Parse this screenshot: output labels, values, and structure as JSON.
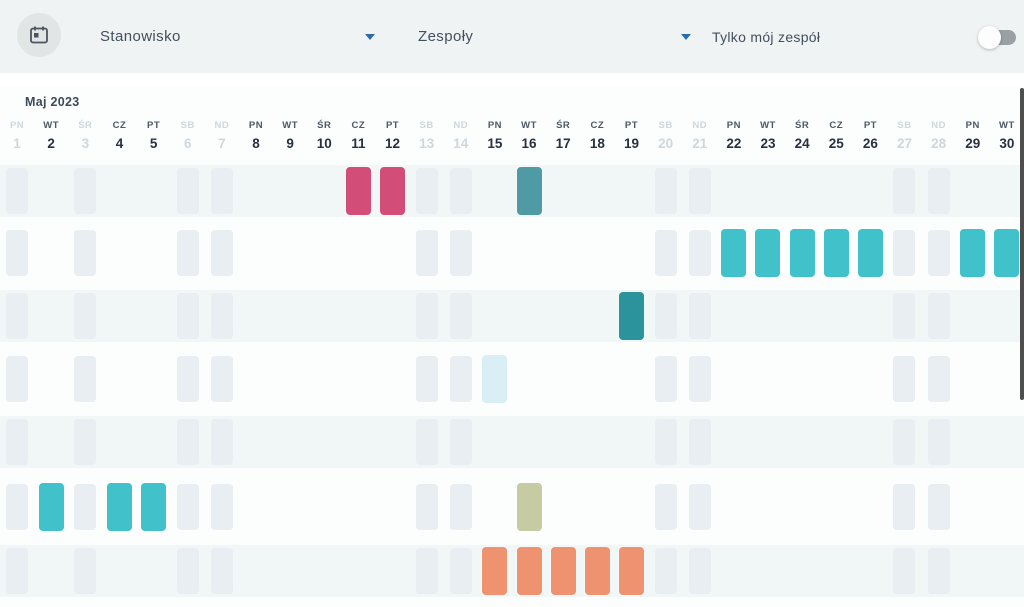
{
  "topbar": {
    "filters": [
      {
        "label": "Stanowisko"
      },
      {
        "label": "Zespoły"
      }
    ],
    "toggle_label": "Tylko mój zespół",
    "toggle_state": "off"
  },
  "calendar": {
    "month_label": "Maj 2023",
    "days": [
      {
        "dow": "PN",
        "date": 1,
        "muted": true
      },
      {
        "dow": "WT",
        "date": 2,
        "muted": false
      },
      {
        "dow": "ŚR",
        "date": 3,
        "muted": true
      },
      {
        "dow": "CZ",
        "date": 4,
        "muted": false
      },
      {
        "dow": "PT",
        "date": 5,
        "muted": false
      },
      {
        "dow": "SB",
        "date": 6,
        "muted": true
      },
      {
        "dow": "ND",
        "date": 7,
        "muted": true
      },
      {
        "dow": "PN",
        "date": 8,
        "muted": false
      },
      {
        "dow": "WT",
        "date": 9,
        "muted": false
      },
      {
        "dow": "ŚR",
        "date": 10,
        "muted": false
      },
      {
        "dow": "CZ",
        "date": 11,
        "muted": false
      },
      {
        "dow": "PT",
        "date": 12,
        "muted": false
      },
      {
        "dow": "SB",
        "date": 13,
        "muted": true
      },
      {
        "dow": "ND",
        "date": 14,
        "muted": true
      },
      {
        "dow": "PN",
        "date": 15,
        "muted": false
      },
      {
        "dow": "WT",
        "date": 16,
        "muted": false
      },
      {
        "dow": "ŚR",
        "date": 17,
        "muted": false
      },
      {
        "dow": "CZ",
        "date": 18,
        "muted": false
      },
      {
        "dow": "PT",
        "date": 19,
        "muted": false
      },
      {
        "dow": "SB",
        "date": 20,
        "muted": true
      },
      {
        "dow": "ND",
        "date": 21,
        "muted": true
      },
      {
        "dow": "PN",
        "date": 22,
        "muted": false
      },
      {
        "dow": "WT",
        "date": 23,
        "muted": false
      },
      {
        "dow": "ŚR",
        "date": 24,
        "muted": false
      },
      {
        "dow": "CZ",
        "date": 25,
        "muted": false
      },
      {
        "dow": "PT",
        "date": 26,
        "muted": false
      },
      {
        "dow": "SB",
        "date": 27,
        "muted": true
      },
      {
        "dow": "ND",
        "date": 28,
        "muted": true
      },
      {
        "dow": "PN",
        "date": 29,
        "muted": false
      },
      {
        "dow": "WT",
        "date": 30,
        "muted": false
      }
    ],
    "colors": {
      "pink": "#d24e79",
      "teal": "#41c1c9",
      "muted_teal": "#4f9aa4",
      "dark_teal": "#2b939b",
      "pale_blue": "#daeef5",
      "olive": "#c6cba4",
      "salmon": "#ef9270"
    },
    "rows": [
      {
        "bars": [
          {
            "day": 11,
            "color": "pink"
          },
          {
            "day": 12,
            "color": "pink"
          },
          {
            "day": 16,
            "color": "muted_teal"
          }
        ]
      },
      {
        "bars": [
          {
            "day": 22,
            "color": "teal"
          },
          {
            "day": 23,
            "color": "teal"
          },
          {
            "day": 24,
            "color": "teal"
          },
          {
            "day": 25,
            "color": "teal"
          },
          {
            "day": 26,
            "color": "teal"
          },
          {
            "day": 29,
            "color": "teal"
          },
          {
            "day": 30,
            "color": "teal"
          }
        ]
      },
      {
        "bars": [
          {
            "day": 19,
            "color": "dark_teal"
          }
        ]
      },
      {
        "bars": [
          {
            "day": 15,
            "color": "pale_blue"
          }
        ]
      },
      {
        "bars": []
      },
      {
        "bars": [
          {
            "day": 2,
            "color": "teal"
          },
          {
            "day": 4,
            "color": "teal"
          },
          {
            "day": 5,
            "color": "teal"
          },
          {
            "day": 16,
            "color": "olive"
          }
        ]
      },
      {
        "bars": [
          {
            "day": 15,
            "color": "salmon"
          },
          {
            "day": 16,
            "color": "salmon"
          },
          {
            "day": 17,
            "color": "salmon"
          },
          {
            "day": 18,
            "color": "salmon"
          },
          {
            "day": 19,
            "color": "salmon"
          }
        ]
      }
    ]
  }
}
